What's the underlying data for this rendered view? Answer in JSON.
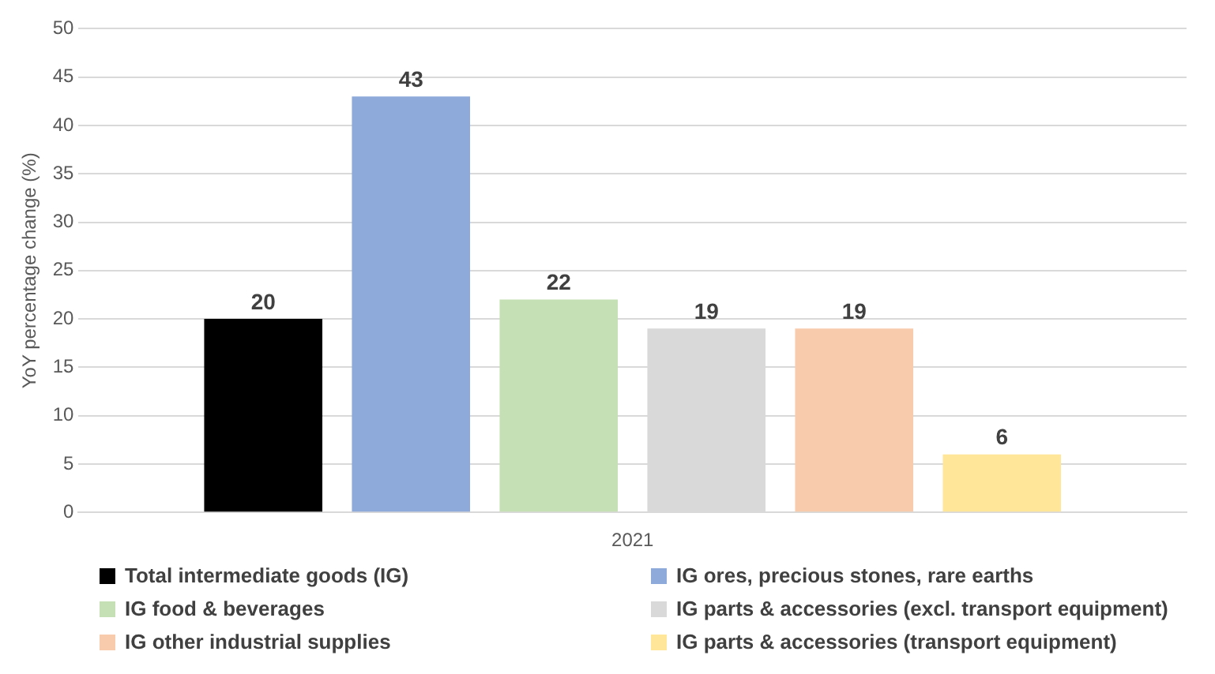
{
  "chart_data": {
    "type": "bar",
    "ylabel": "YoY percentage change (%)",
    "categories": [
      "2021"
    ],
    "series": [
      {
        "name": "Total intermediate goods (IG)",
        "color": "#000000",
        "values": [
          20
        ]
      },
      {
        "name": "IG ores, precious stones, rare earths",
        "color": "#8eaadb",
        "values": [
          43
        ]
      },
      {
        "name": "IG food & beverages",
        "color": "#c5e0b4",
        "values": [
          22
        ]
      },
      {
        "name": "IG parts & accessories (excl. transport equipment)",
        "color": "#d9d9d9",
        "values": [
          19
        ]
      },
      {
        "name": "IG other industrial supplies",
        "color": "#f8cbad",
        "values": [
          19
        ]
      },
      {
        "name": "IG parts & accessories (transport equipment)",
        "color": "#ffe699",
        "values": [
          6
        ]
      }
    ],
    "ylim": [
      0,
      50
    ],
    "yticks": [
      0,
      5,
      10,
      15,
      20,
      25,
      30,
      35,
      40,
      45,
      50
    ],
    "grid": "y",
    "legend": "bottom",
    "data_labels": true
  }
}
